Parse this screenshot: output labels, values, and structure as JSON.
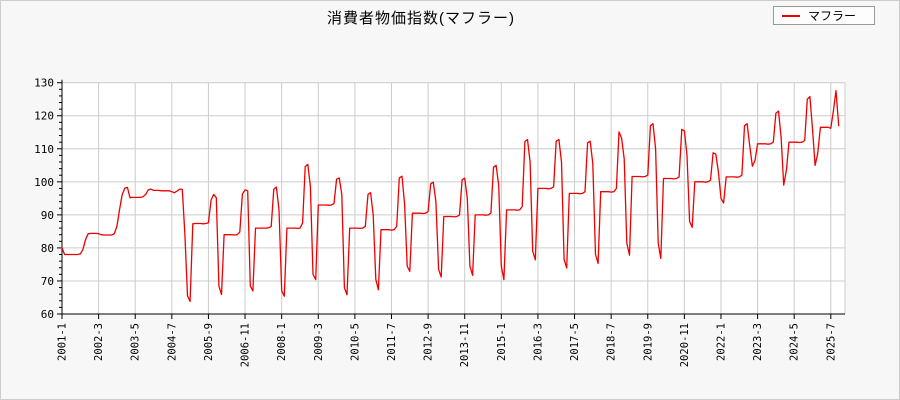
{
  "header": {
    "title": "消費者物価指数(マフラー)"
  },
  "legend": {
    "label": "マフラー"
  },
  "colors": {
    "line": "#ee0000",
    "grid": "#cccccc",
    "axis": "#000000",
    "background": "#f7f7f7",
    "plot_background": "#ffffff",
    "legend_border": "#999999"
  },
  "chart_data": {
    "type": "line",
    "title": "消費者物価指数(マフラー)",
    "series_name": "マフラー",
    "legend_position": "top-right",
    "grid": true,
    "x_start": "2001-01",
    "x_end": "2025-10",
    "x_tick_interval_months": 14,
    "x_tick_labels": [
      "2001-1",
      "2002-3",
      "2003-5",
      "2004-7",
      "2005-9",
      "2006-11",
      "2008-1",
      "2009-3",
      "2010-5",
      "2011-7",
      "2012-9",
      "2013-11",
      "2015-1",
      "2016-3",
      "2017-5",
      "2018-7",
      "2019-9",
      "2020-11",
      "2022-1",
      "2023-3",
      "2024-5",
      "2025-7"
    ],
    "y_axis": {
      "min": 60,
      "max": 130,
      "major_step": 10,
      "minor_step": 2
    },
    "values": [
      80.0,
      78.0,
      78.0,
      78.0,
      78.0,
      78.0,
      78.0,
      78.2,
      79.5,
      82.5,
      84.3,
      84.4,
      84.4,
      84.4,
      84.3,
      84.0,
      83.9,
      83.9,
      83.9,
      83.9,
      84.3,
      86.5,
      91.5,
      96.0,
      98.1,
      98.3,
      95.2,
      95.3,
      95.3,
      95.3,
      95.3,
      95.5,
      96.2,
      97.6,
      97.8,
      97.4,
      97.4,
      97.4,
      97.3,
      97.3,
      97.3,
      97.3,
      97.0,
      96.7,
      97.2,
      97.8,
      97.7,
      84.0,
      65.5,
      63.8,
      87.3,
      87.4,
      87.4,
      87.4,
      87.3,
      87.4,
      87.6,
      94.5,
      96.2,
      95.2,
      68.5,
      65.9,
      84.0,
      84.0,
      84.0,
      84.0,
      83.9,
      84.0,
      84.8,
      96.3,
      97.6,
      97.3,
      68.5,
      67.0,
      86.0,
      86.0,
      86.0,
      86.0,
      86.0,
      86.1,
      86.5,
      97.8,
      98.4,
      91.5,
      67.0,
      65.4,
      86.0,
      86.0,
      86.0,
      86.0,
      85.9,
      86.0,
      87.5,
      104.6,
      105.3,
      98.6,
      72.0,
      70.4,
      93.0,
      93.0,
      93.0,
      93.0,
      92.9,
      93.0,
      93.4,
      100.8,
      101.2,
      96.2,
      68.0,
      65.8,
      86.0,
      86.0,
      86.0,
      86.0,
      85.9,
      86.0,
      86.5,
      96.2,
      96.7,
      90.0,
      70.5,
      67.3,
      85.5,
      85.5,
      85.5,
      85.5,
      85.4,
      85.5,
      86.5,
      101.2,
      101.7,
      93.2,
      74.5,
      72.9,
      90.5,
      90.5,
      90.5,
      90.5,
      90.4,
      90.5,
      91.0,
      99.4,
      99.9,
      94.0,
      73.5,
      71.2,
      89.5,
      89.5,
      89.5,
      89.5,
      89.4,
      89.5,
      90.0,
      100.6,
      101.1,
      95.0,
      74.5,
      71.7,
      90.0,
      90.0,
      90.0,
      90.0,
      89.9,
      90.0,
      90.5,
      104.4,
      105.0,
      99.0,
      74.5,
      70.4,
      91.5,
      91.5,
      91.5,
      91.5,
      91.4,
      91.5,
      92.5,
      112.2,
      112.8,
      106.0,
      79.0,
      76.4,
      98.0,
      98.0,
      98.0,
      98.0,
      97.9,
      98.0,
      98.5,
      112.3,
      112.8,
      106.0,
      76.5,
      73.9,
      96.5,
      96.5,
      96.5,
      96.5,
      96.4,
      96.5,
      97.0,
      111.8,
      112.3,
      105.5,
      78.0,
      75.3,
      97.0,
      97.0,
      97.0,
      97.0,
      96.9,
      97.0,
      98.0,
      115.1,
      113.2,
      107.0,
      81.5,
      77.8,
      101.6,
      101.6,
      101.6,
      101.6,
      101.5,
      101.6,
      102.0,
      117.0,
      117.6,
      110.0,
      81.5,
      76.8,
      101.0,
      101.0,
      101.0,
      101.0,
      100.9,
      101.0,
      101.5,
      115.9,
      115.4,
      108.0,
      88.0,
      86.2,
      100.0,
      100.0,
      100.0,
      100.0,
      99.9,
      100.0,
      100.5,
      108.8,
      108.4,
      103.0,
      95.0,
      93.6,
      101.5,
      101.5,
      101.5,
      101.5,
      101.4,
      101.5,
      102.0,
      117.0,
      117.6,
      111.0,
      104.7,
      106.5,
      111.5,
      111.5,
      111.5,
      111.5,
      111.4,
      111.5,
      112.0,
      120.8,
      121.4,
      113.5,
      99.0,
      103.5,
      112.0,
      112.0,
      112.0,
      112.0,
      111.9,
      112.0,
      112.5,
      125.0,
      125.8,
      116.0,
      105.0,
      108.5,
      116.5,
      116.5,
      116.5,
      116.5,
      116.2,
      121.5,
      127.6,
      117.0
    ]
  }
}
